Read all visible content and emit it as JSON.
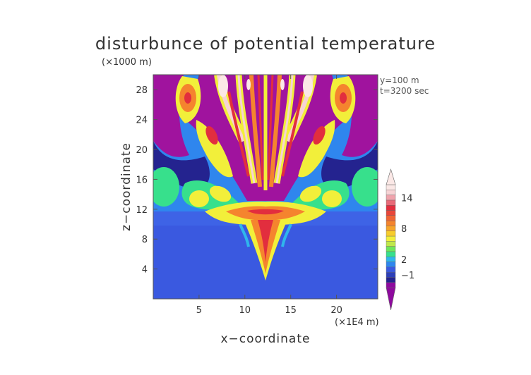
{
  "chart_data": {
    "type": "heatmap",
    "title": "disturbunce of potential temperature",
    "xlabel": "x−coordinate",
    "ylabel": "z−coordinate",
    "x_unit": "(×1E4 m)",
    "y_unit": "(×1000 m)",
    "annotations": [
      "y=100  m",
      "t=3200 sec"
    ],
    "x_ticks": [
      5,
      10,
      15,
      20
    ],
    "y_ticks": [
      4,
      8,
      12,
      16,
      20,
      24,
      28
    ],
    "xlim": [
      0,
      24.5
    ],
    "ylim": [
      0,
      30
    ],
    "colorbar": {
      "labels": [
        {
          "value": -1,
          "text": "−1"
        },
        {
          "value": 2,
          "text": "2"
        },
        {
          "value": 8,
          "text": "8"
        },
        {
          "value": 14,
          "text": "14"
        }
      ],
      "levels": [
        -3,
        -2,
        -1,
        0,
        1,
        2,
        3,
        4,
        5,
        6,
        7,
        8,
        9,
        10,
        11,
        12,
        13,
        14,
        15,
        16
      ],
      "colors": [
        "#8e0a9e",
        "#24238f",
        "#2d3fb8",
        "#3a59e0",
        "#2f86ee",
        "#2fb6ec",
        "#37e08c",
        "#6ee65a",
        "#bfe84a",
        "#f2ef3a",
        "#f7cc2c",
        "#f7a52a",
        "#f5842e",
        "#f06434",
        "#e8463a",
        "#e22e3e",
        "#e86a78",
        "#f0a3ac",
        "#f7d3d5",
        "#fbe8e6"
      ]
    },
    "grid": false,
    "legend_placement": "right"
  },
  "colors": {
    "background": "#3a59e0",
    "magenta": "#a0139e",
    "dark_blue": "#24238f",
    "cyan": "#2fb6ec",
    "green": "#37e08c",
    "yellow": "#f2ef3a",
    "orange": "#f5842e",
    "red": "#e22e3e",
    "pink": "#f7d3d5"
  }
}
